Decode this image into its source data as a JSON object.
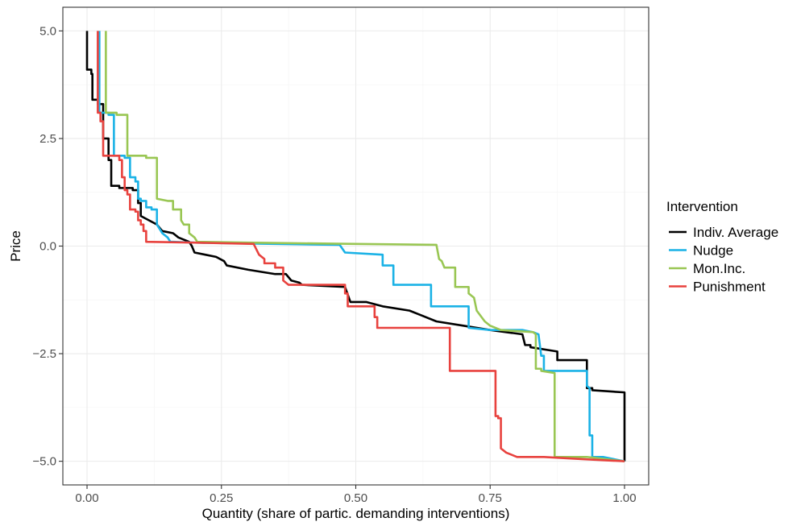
{
  "chart_data": {
    "type": "line",
    "line_shape": "step",
    "xlabel": "Quantity (share of partic. demanding interventions)",
    "ylabel": "Price",
    "xlim": [
      -0.045,
      1.045
    ],
    "ylim": [
      -5.55,
      5.55
    ],
    "x_ticks": [
      0.0,
      0.25,
      0.5,
      0.75,
      1.0
    ],
    "x_tick_labels": [
      "0.00",
      "0.25",
      "0.50",
      "0.75",
      "1.00"
    ],
    "y_ticks": [
      5.0,
      2.5,
      0.0,
      -2.5,
      -5.0
    ],
    "y_tick_labels": [
      "5.0",
      "2.5",
      "0.0",
      "−2.5",
      "−5.0"
    ],
    "grid": true,
    "legend_title": "Intervention",
    "legend_position": "right",
    "series": [
      {
        "name": "Indiv. Average",
        "color": "#000000",
        "points": [
          [
            0.0,
            5.0
          ],
          [
            0.0,
            4.1
          ],
          [
            0.008,
            4.1
          ],
          [
            0.008,
            4.0
          ],
          [
            0.01,
            4.0
          ],
          [
            0.01,
            3.4
          ],
          [
            0.02,
            3.4
          ],
          [
            0.02,
            3.3
          ],
          [
            0.03,
            3.3
          ],
          [
            0.03,
            2.5
          ],
          [
            0.04,
            2.5
          ],
          [
            0.04,
            2.0
          ],
          [
            0.045,
            2.0
          ],
          [
            0.045,
            1.4
          ],
          [
            0.06,
            1.4
          ],
          [
            0.06,
            1.35
          ],
          [
            0.085,
            1.35
          ],
          [
            0.085,
            1.3
          ],
          [
            0.095,
            1.3
          ],
          [
            0.095,
            1.0
          ],
          [
            0.1,
            1.0
          ],
          [
            0.1,
            0.7
          ],
          [
            0.13,
            0.5
          ],
          [
            0.14,
            0.35
          ],
          [
            0.16,
            0.3
          ],
          [
            0.17,
            0.2
          ],
          [
            0.19,
            0.1
          ],
          [
            0.195,
            0.0
          ],
          [
            0.2,
            -0.15
          ],
          [
            0.22,
            -0.2
          ],
          [
            0.24,
            -0.25
          ],
          [
            0.255,
            -0.35
          ],
          [
            0.26,
            -0.45
          ],
          [
            0.3,
            -0.55
          ],
          [
            0.35,
            -0.65
          ],
          [
            0.37,
            -0.65
          ],
          [
            0.38,
            -0.8
          ],
          [
            0.395,
            -0.85
          ],
          [
            0.4,
            -0.9
          ],
          [
            0.48,
            -0.95
          ],
          [
            0.49,
            -1.3
          ],
          [
            0.52,
            -1.3
          ],
          [
            0.55,
            -1.4
          ],
          [
            0.6,
            -1.5
          ],
          [
            0.62,
            -1.6
          ],
          [
            0.65,
            -1.75
          ],
          [
            0.7,
            -1.85
          ],
          [
            0.75,
            -1.95
          ],
          [
            0.81,
            -2.05
          ],
          [
            0.815,
            -2.3
          ],
          [
            0.825,
            -2.3
          ],
          [
            0.825,
            -2.35
          ],
          [
            0.875,
            -2.45
          ],
          [
            0.875,
            -2.65
          ],
          [
            0.93,
            -2.65
          ],
          [
            0.93,
            -3.3
          ],
          [
            0.94,
            -3.3
          ],
          [
            0.94,
            -3.35
          ],
          [
            1.0,
            -3.4
          ],
          [
            1.0,
            -5.0
          ]
        ]
      },
      {
        "name": "Nudge",
        "color": "#1ab2e6",
        "points": [
          [
            0.023,
            5.0
          ],
          [
            0.023,
            3.1
          ],
          [
            0.04,
            3.1
          ],
          [
            0.04,
            3.05
          ],
          [
            0.05,
            3.05
          ],
          [
            0.05,
            2.1
          ],
          [
            0.07,
            2.1
          ],
          [
            0.07,
            2.05
          ],
          [
            0.08,
            2.05
          ],
          [
            0.08,
            1.6
          ],
          [
            0.09,
            1.6
          ],
          [
            0.09,
            1.5
          ],
          [
            0.095,
            1.5
          ],
          [
            0.095,
            1.1
          ],
          [
            0.1,
            1.1
          ],
          [
            0.1,
            1.05
          ],
          [
            0.11,
            1.05
          ],
          [
            0.11,
            0.9
          ],
          [
            0.12,
            0.9
          ],
          [
            0.12,
            0.85
          ],
          [
            0.13,
            0.85
          ],
          [
            0.13,
            0.5
          ],
          [
            0.14,
            0.3
          ],
          [
            0.15,
            0.2
          ],
          [
            0.155,
            0.1
          ],
          [
            0.16,
            0.1
          ],
          [
            0.2,
            0.08
          ],
          [
            0.3,
            0.06
          ],
          [
            0.4,
            0.04
          ],
          [
            0.47,
            0.03
          ],
          [
            0.48,
            -0.15
          ],
          [
            0.55,
            -0.2
          ],
          [
            0.55,
            -0.45
          ],
          [
            0.57,
            -0.45
          ],
          [
            0.57,
            -0.9
          ],
          [
            0.64,
            -0.9
          ],
          [
            0.64,
            -1.4
          ],
          [
            0.71,
            -1.4
          ],
          [
            0.71,
            -1.9
          ],
          [
            0.75,
            -1.95
          ],
          [
            0.81,
            -1.95
          ],
          [
            0.83,
            -2.0
          ],
          [
            0.84,
            -2.05
          ],
          [
            0.845,
            -2.55
          ],
          [
            0.85,
            -2.55
          ],
          [
            0.85,
            -2.9
          ],
          [
            0.93,
            -2.9
          ],
          [
            0.93,
            -3.25
          ],
          [
            0.935,
            -3.3
          ],
          [
            0.935,
            -4.4
          ],
          [
            0.94,
            -4.4
          ],
          [
            0.94,
            -4.9
          ],
          [
            0.96,
            -4.9
          ],
          [
            1.0,
            -5.0
          ]
        ]
      },
      {
        "name": "Mon.Inc.",
        "color": "#99c653",
        "points": [
          [
            0.035,
            5.0
          ],
          [
            0.035,
            3.1
          ],
          [
            0.055,
            3.1
          ],
          [
            0.055,
            3.05
          ],
          [
            0.075,
            3.05
          ],
          [
            0.075,
            2.1
          ],
          [
            0.11,
            2.1
          ],
          [
            0.11,
            2.05
          ],
          [
            0.13,
            2.05
          ],
          [
            0.13,
            1.1
          ],
          [
            0.15,
            1.05
          ],
          [
            0.16,
            1.05
          ],
          [
            0.16,
            0.85
          ],
          [
            0.175,
            0.85
          ],
          [
            0.175,
            0.6
          ],
          [
            0.18,
            0.5
          ],
          [
            0.19,
            0.5
          ],
          [
            0.19,
            0.3
          ],
          [
            0.2,
            0.2
          ],
          [
            0.205,
            0.1
          ],
          [
            0.3,
            0.08
          ],
          [
            0.5,
            0.05
          ],
          [
            0.65,
            0.03
          ],
          [
            0.655,
            -0.3
          ],
          [
            0.66,
            -0.35
          ],
          [
            0.665,
            -0.5
          ],
          [
            0.685,
            -0.5
          ],
          [
            0.685,
            -0.95
          ],
          [
            0.71,
            -0.95
          ],
          [
            0.71,
            -1.1
          ],
          [
            0.72,
            -1.2
          ],
          [
            0.725,
            -1.5
          ],
          [
            0.74,
            -1.75
          ],
          [
            0.75,
            -1.85
          ],
          [
            0.77,
            -1.95
          ],
          [
            0.83,
            -2.0
          ],
          [
            0.835,
            -2.05
          ],
          [
            0.835,
            -2.85
          ],
          [
            0.845,
            -2.85
          ],
          [
            0.845,
            -2.9
          ],
          [
            0.87,
            -2.95
          ],
          [
            0.87,
            -4.9
          ],
          [
            0.93,
            -4.9
          ],
          [
            1.0,
            -5.0
          ]
        ]
      },
      {
        "name": "Punishment",
        "color": "#e8423e",
        "points": [
          [
            0.02,
            5.0
          ],
          [
            0.02,
            3.4
          ],
          [
            0.02,
            3.1
          ],
          [
            0.025,
            3.1
          ],
          [
            0.025,
            2.9
          ],
          [
            0.03,
            2.9
          ],
          [
            0.03,
            2.1
          ],
          [
            0.06,
            2.1
          ],
          [
            0.06,
            2.0
          ],
          [
            0.065,
            2.0
          ],
          [
            0.065,
            1.6
          ],
          [
            0.07,
            1.6
          ],
          [
            0.07,
            1.3
          ],
          [
            0.075,
            1.3
          ],
          [
            0.075,
            1.2
          ],
          [
            0.08,
            1.2
          ],
          [
            0.08,
            0.85
          ],
          [
            0.09,
            0.85
          ],
          [
            0.09,
            0.8
          ],
          [
            0.095,
            0.8
          ],
          [
            0.095,
            0.6
          ],
          [
            0.1,
            0.6
          ],
          [
            0.1,
            0.5
          ],
          [
            0.105,
            0.5
          ],
          [
            0.105,
            0.35
          ],
          [
            0.11,
            0.35
          ],
          [
            0.11,
            0.1
          ],
          [
            0.2,
            0.08
          ],
          [
            0.31,
            0.05
          ],
          [
            0.32,
            -0.2
          ],
          [
            0.33,
            -0.3
          ],
          [
            0.33,
            -0.4
          ],
          [
            0.35,
            -0.4
          ],
          [
            0.35,
            -0.5
          ],
          [
            0.365,
            -0.5
          ],
          [
            0.365,
            -0.8
          ],
          [
            0.375,
            -0.9
          ],
          [
            0.48,
            -0.9
          ],
          [
            0.48,
            -1.1
          ],
          [
            0.485,
            -1.1
          ],
          [
            0.485,
            -1.4
          ],
          [
            0.535,
            -1.4
          ],
          [
            0.535,
            -1.65
          ],
          [
            0.54,
            -1.65
          ],
          [
            0.54,
            -1.9
          ],
          [
            0.675,
            -1.9
          ],
          [
            0.675,
            -2.9
          ],
          [
            0.76,
            -2.9
          ],
          [
            0.76,
            -3.95
          ],
          [
            0.765,
            -3.95
          ],
          [
            0.765,
            -4.0
          ],
          [
            0.77,
            -4.0
          ],
          [
            0.77,
            -4.7
          ],
          [
            0.78,
            -4.8
          ],
          [
            0.8,
            -4.9
          ],
          [
            0.85,
            -4.9
          ],
          [
            0.92,
            -4.95
          ],
          [
            1.0,
            -5.0
          ]
        ]
      }
    ]
  }
}
